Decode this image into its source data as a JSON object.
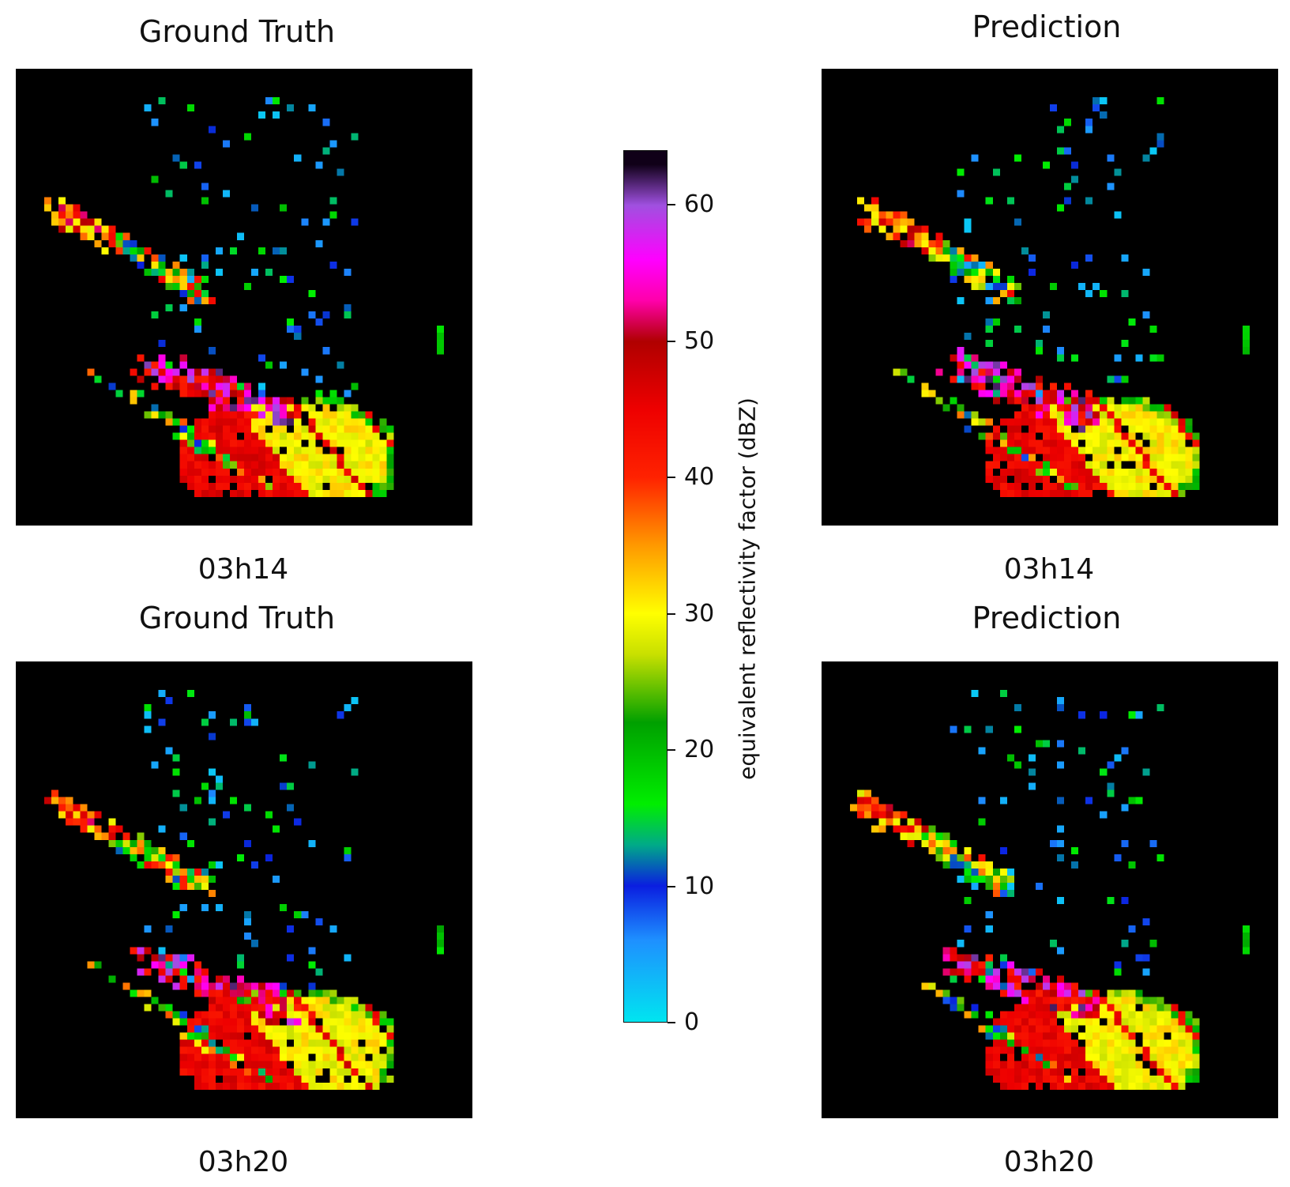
{
  "colorbar": {
    "label": "equivalent reflectivity factor (dBZ)",
    "vmin": 0,
    "vmax": 64,
    "ticks": [
      {
        "value": 0,
        "label": "0"
      },
      {
        "value": 10,
        "label": "10"
      },
      {
        "value": 20,
        "label": "20"
      },
      {
        "value": 30,
        "label": "30"
      },
      {
        "value": 40,
        "label": "40"
      },
      {
        "value": 50,
        "label": "50"
      },
      {
        "value": 60,
        "label": "60"
      }
    ],
    "colors": [
      {
        "value": 0,
        "color": "#00e5f0"
      },
      {
        "value": 6,
        "color": "#1e90ff"
      },
      {
        "value": 10,
        "color": "#0a1ee0"
      },
      {
        "value": 13,
        "color": "#00aa88"
      },
      {
        "value": 16,
        "color": "#00ee00"
      },
      {
        "value": 22,
        "color": "#00a000"
      },
      {
        "value": 27,
        "color": "#c8e000"
      },
      {
        "value": 30,
        "color": "#ffff00"
      },
      {
        "value": 35,
        "color": "#ff9900"
      },
      {
        "value": 40,
        "color": "#ff2200"
      },
      {
        "value": 45,
        "color": "#ee0000"
      },
      {
        "value": 50,
        "color": "#b00000"
      },
      {
        "value": 53,
        "color": "#ff00aa"
      },
      {
        "value": 56,
        "color": "#ff00ff"
      },
      {
        "value": 60,
        "color": "#a050e0"
      },
      {
        "value": 63,
        "color": "#100018"
      }
    ]
  },
  "panels": [
    {
      "title": "Ground Truth",
      "time": "03h14"
    },
    {
      "title": "Prediction",
      "time": "03h14"
    },
    {
      "title": "Ground Truth",
      "time": "03h20"
    },
    {
      "title": "Prediction",
      "time": "03h20"
    }
  ],
  "chart_data": {
    "type": "heatmap",
    "colorbar_label": "equivalent reflectivity factor (dBZ)",
    "colorbar_range": [
      0,
      64
    ],
    "panel_titles": [
      "Ground Truth",
      "Prediction",
      "Ground Truth",
      "Prediction"
    ],
    "panel_times": [
      "03h14",
      "03h14",
      "03h20",
      "03h20"
    ]
  }
}
